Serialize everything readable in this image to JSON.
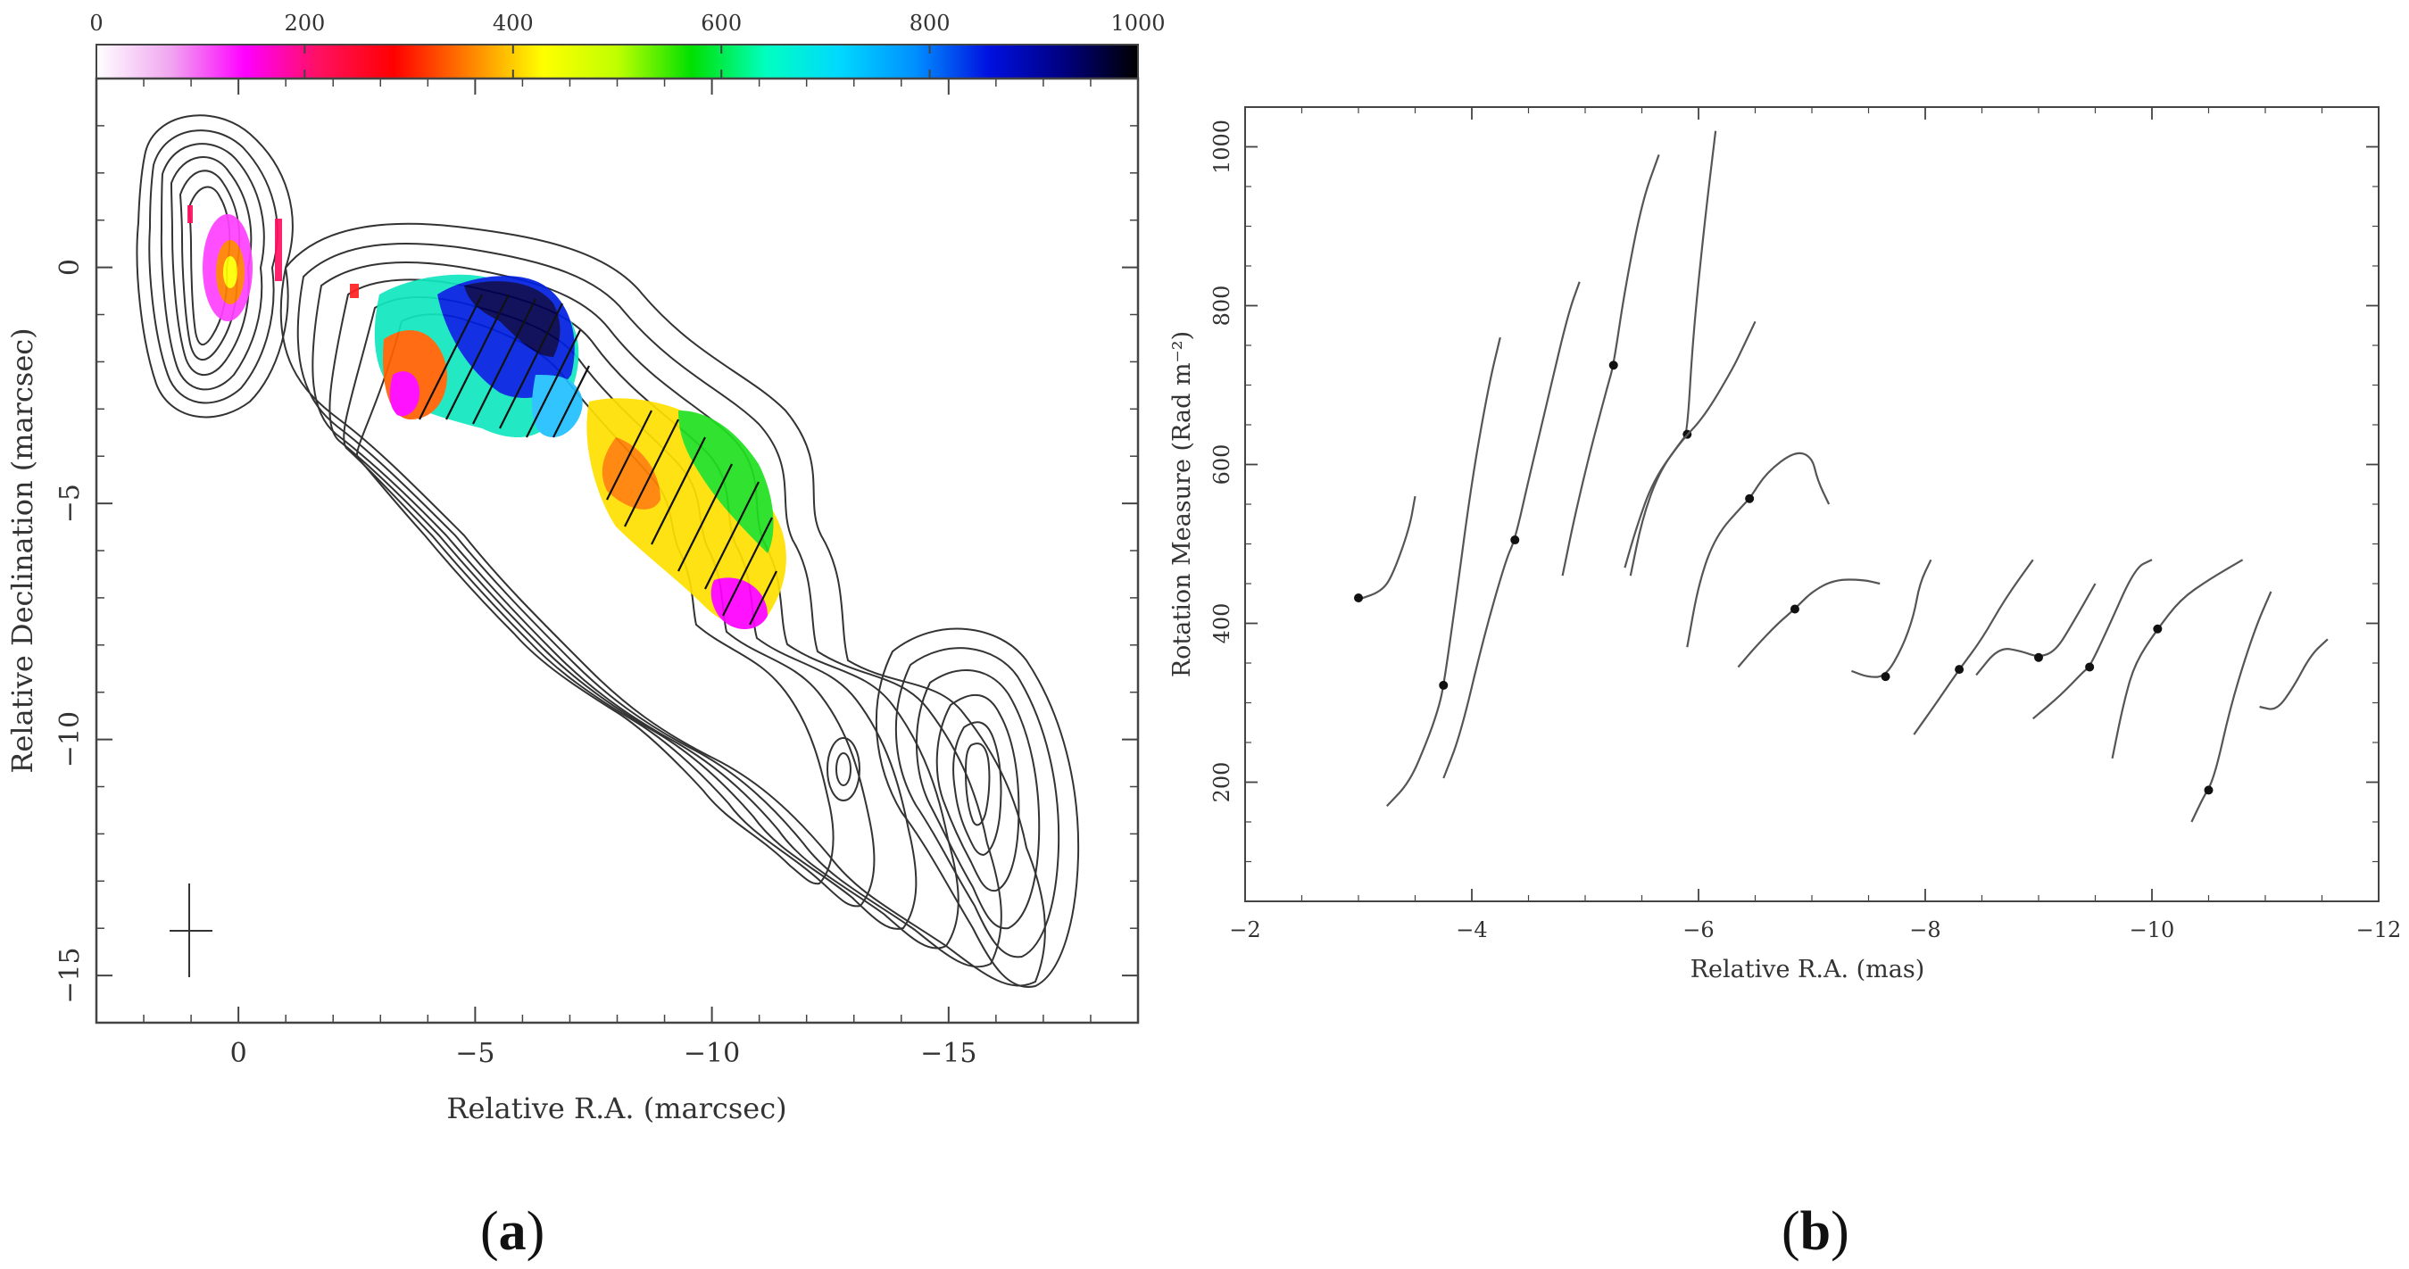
{
  "panel_labels": {
    "a": "a",
    "b": "b"
  },
  "chart_data": [
    {
      "type": "heatmap",
      "panel": "a",
      "xlabel": "Relative R.A. (marcsec)",
      "ylabel": "Relative Declination (marcsec)",
      "xlim": [
        3,
        -19
      ],
      "ylim": [
        -16,
        4
      ],
      "xticks": [
        0,
        -5,
        -10,
        -15
      ],
      "yticks": [
        0,
        -5,
        -10,
        -15
      ],
      "colorbar": {
        "range": [
          0,
          1000
        ],
        "ticks": [
          0,
          200,
          400,
          600,
          800,
          1000
        ],
        "colors": [
          "#ffffff",
          "#f0a6f0",
          "#ff00ff",
          "#ff1060",
          "#ff0000",
          "#ff8000",
          "#ffff00",
          "#c0ff00",
          "#00e000",
          "#00ffc0",
          "#00d8ff",
          "#0090ff",
          "#0010e0",
          "#000080",
          "#000000"
        ]
      },
      "beam_center": [
        -1,
        -14
      ]
    },
    {
      "type": "line",
      "panel": "b",
      "xlabel": "Relative R.A. (mas)",
      "ylabel": "Rotation Measure (Rad m⁻²)",
      "xlim": [
        -2,
        -12
      ],
      "ylim": [
        50,
        1050
      ],
      "xticks": [
        -2,
        -4,
        -6,
        -8,
        -10,
        -12
      ],
      "yticks": [
        200,
        400,
        600,
        800,
        1000
      ],
      "series": [
        {
          "values": [
            [
              -3.0,
              430
            ],
            [
              -3.2,
              440
            ],
            [
              -3.3,
              460
            ],
            [
              -3.45,
              520
            ],
            [
              -3.5,
              560
            ]
          ],
          "point": [
            -3.0,
            432
          ]
        },
        {
          "values": [
            [
              -3.25,
              170
            ],
            [
              -3.45,
              200
            ],
            [
              -3.6,
              250
            ],
            [
              -3.7,
              290
            ],
            [
              -3.75,
              320
            ],
            [
              -3.85,
              420
            ],
            [
              -4.0,
              580
            ],
            [
              -4.15,
              700
            ],
            [
              -4.25,
              760
            ]
          ],
          "point": [
            -3.75,
            322
          ]
        },
        {
          "values": [
            [
              -3.75,
              205
            ],
            [
              -3.9,
              260
            ],
            [
              -4.1,
              380
            ],
            [
              -4.3,
              480
            ],
            [
              -4.38,
              505
            ],
            [
              -4.5,
              580
            ],
            [
              -4.7,
              700
            ],
            [
              -4.85,
              790
            ],
            [
              -4.95,
              830
            ]
          ],
          "point": [
            -4.38,
            505
          ]
        },
        {
          "values": [
            [
              -4.8,
              460
            ],
            [
              -4.9,
              530
            ],
            [
              -5.05,
              620
            ],
            [
              -5.2,
              700
            ],
            [
              -5.25,
              725
            ],
            [
              -5.35,
              820
            ],
            [
              -5.5,
              930
            ],
            [
              -5.65,
              990
            ]
          ],
          "point": [
            -5.25,
            725
          ]
        },
        {
          "values": [
            [
              -5.35,
              470
            ],
            [
              -5.45,
              520
            ],
            [
              -5.6,
              580
            ],
            [
              -5.85,
              630
            ],
            [
              -5.9,
              638
            ],
            [
              -5.95,
              760
            ],
            [
              -6.05,
              900
            ],
            [
              -6.15,
              1020
            ]
          ],
          "point": [
            -5.9,
            638
          ]
        },
        {
          "values": [
            [
              -5.4,
              460
            ],
            [
              -5.5,
              530
            ],
            [
              -5.65,
              590
            ],
            [
              -5.85,
              630
            ],
            [
              -6.05,
              660
            ],
            [
              -6.3,
              720
            ],
            [
              -6.4,
              750
            ],
            [
              -6.5,
              780
            ]
          ],
          "point": null
        },
        {
          "values": [
            [
              -5.9,
              370
            ],
            [
              -6.0,
              450
            ],
            [
              -6.15,
              510
            ],
            [
              -6.4,
              550
            ],
            [
              -6.45,
              557
            ],
            [
              -6.6,
              590
            ],
            [
              -6.85,
              617
            ],
            [
              -7.0,
              610
            ],
            [
              -7.05,
              580
            ],
            [
              -7.15,
              550
            ]
          ],
          "point": [
            -6.45,
            557
          ]
        },
        {
          "values": [
            [
              -6.35,
              345
            ],
            [
              -6.5,
              370
            ],
            [
              -6.7,
              400
            ],
            [
              -6.85,
              418
            ],
            [
              -7.0,
              440
            ],
            [
              -7.2,
              455
            ],
            [
              -7.45,
              455
            ],
            [
              -7.6,
              450
            ]
          ],
          "point": [
            -6.85,
            418
          ]
        },
        {
          "values": [
            [
              -7.35,
              340
            ],
            [
              -7.5,
              332
            ],
            [
              -7.65,
              333
            ],
            [
              -7.8,
              370
            ],
            [
              -7.9,
              410
            ],
            [
              -7.95,
              450
            ],
            [
              -8.05,
              480
            ]
          ],
          "point": [
            -7.65,
            333
          ]
        },
        {
          "values": [
            [
              -7.9,
              260
            ],
            [
              -8.1,
              300
            ],
            [
              -8.3,
              342
            ],
            [
              -8.5,
              380
            ],
            [
              -8.7,
              430
            ],
            [
              -8.95,
              480
            ]
          ],
          "point": [
            -8.3,
            342
          ]
        },
        {
          "values": [
            [
              -8.45,
              335
            ],
            [
              -8.65,
              370
            ],
            [
              -8.85,
              365
            ],
            [
              -9.0,
              357
            ],
            [
              -9.15,
              365
            ],
            [
              -9.3,
              400
            ],
            [
              -9.5,
              450
            ]
          ],
          "point": [
            -9.0,
            357
          ]
        },
        {
          "values": [
            [
              -8.95,
              280
            ],
            [
              -9.2,
              310
            ],
            [
              -9.4,
              340
            ],
            [
              -9.45,
              345
            ],
            [
              -9.6,
              390
            ],
            [
              -9.85,
              470
            ],
            [
              -10.0,
              480
            ]
          ],
          "point": [
            -9.45,
            345
          ]
        },
        {
          "values": [
            [
              -9.65,
              230
            ],
            [
              -9.75,
              300
            ],
            [
              -9.85,
              350
            ],
            [
              -10.05,
              393
            ],
            [
              -10.25,
              430
            ],
            [
              -10.5,
              455
            ],
            [
              -10.8,
              480
            ]
          ],
          "point": [
            -10.05,
            393
          ]
        },
        {
          "values": [
            [
              -10.35,
              150
            ],
            [
              -10.45,
              180
            ],
            [
              -10.55,
              205
            ],
            [
              -10.7,
              300
            ],
            [
              -10.9,
              390
            ],
            [
              -11.05,
              440
            ]
          ],
          "point": [
            -10.5,
            190
          ]
        },
        {
          "values": [
            [
              -10.95,
              295
            ],
            [
              -11.1,
              290
            ],
            [
              -11.25,
              320
            ],
            [
              -11.4,
              360
            ],
            [
              -11.55,
              380
            ]
          ],
          "point": null
        }
      ]
    }
  ]
}
